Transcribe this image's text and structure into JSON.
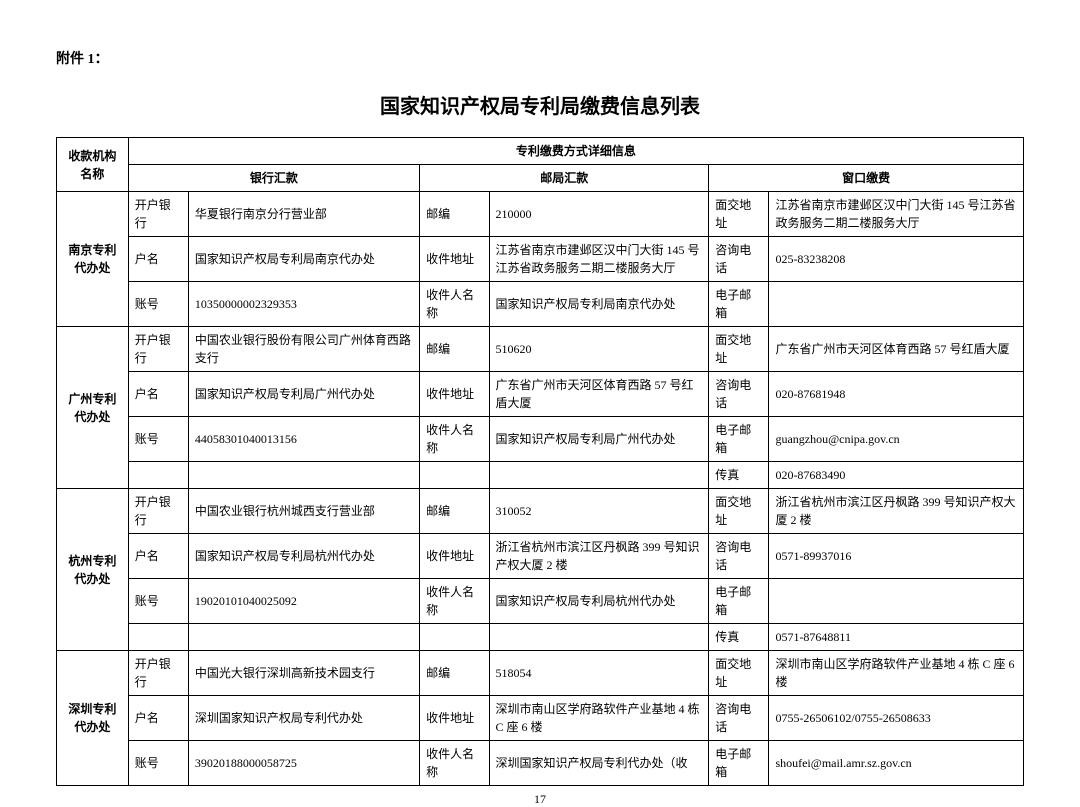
{
  "attachment_label": "附件 1：",
  "title": "国家知识产权局专利局缴费信息列表",
  "page_number": "17",
  "header": {
    "org_col": "收款机构名称",
    "detail_span": "专利缴费方式详细信息",
    "bank": "银行汇款",
    "post": "邮局汇款",
    "counter": "窗口缴费"
  },
  "labels": {
    "bank_bank": "开户银行",
    "bank_name": "户名",
    "bank_acct": "账号",
    "post_zip": "邮编",
    "post_addr": "收件地址",
    "post_recv": "收件人名称",
    "ctr_addr": "面交地址",
    "ctr_tel": "咨询电话",
    "ctr_email": "电子邮箱",
    "ctr_fax": "传真"
  },
  "rows": [
    {
      "org": "南京专利代办处",
      "lines": [
        {
          "b_label": "bank_bank",
          "b_val": "华夏银行南京分行营业部",
          "p_label": "post_zip",
          "p_val": "210000",
          "c_label": "ctr_addr",
          "c_val": "江苏省南京市建邺区汉中门大街 145 号江苏省政务服务二期二楼服务大厅"
        },
        {
          "b_label": "bank_name",
          "b_val": "国家知识产权局专利局南京代办处",
          "p_label": "post_addr",
          "p_val": "江苏省南京市建邺区汉中门大街 145 号江苏省政务服务二期二楼服务大厅",
          "c_label": "ctr_tel",
          "c_val": "025-83238208"
        },
        {
          "b_label": "bank_acct",
          "b_val": "10350000002329353",
          "p_label": "post_recv",
          "p_val": "国家知识产权局专利局南京代办处",
          "c_label": "ctr_email",
          "c_val": ""
        }
      ]
    },
    {
      "org": "广州专利代办处",
      "lines": [
        {
          "b_label": "bank_bank",
          "b_val": "中国农业银行股份有限公司广州体育西路支行",
          "p_label": "post_zip",
          "p_val": "510620",
          "c_label": "ctr_addr",
          "c_val": "广东省广州市天河区体育西路 57 号红盾大厦"
        },
        {
          "b_label": "bank_name",
          "b_val": "国家知识产权局专利局广州代办处",
          "p_label": "post_addr",
          "p_val": "广东省广州市天河区体育西路 57 号红盾大厦",
          "c_label": "ctr_tel",
          "c_val": "020-87681948"
        },
        {
          "b_label": "bank_acct",
          "b_val": "44058301040013156",
          "p_label": "post_recv",
          "p_val": "国家知识产权局专利局广州代办处",
          "c_label": "ctr_email",
          "c_val": "guangzhou@cnipa.gov.cn"
        },
        {
          "b_label": "",
          "b_val": "",
          "p_label": "",
          "p_val": "",
          "c_label": "ctr_fax",
          "c_val": "020-87683490"
        }
      ]
    },
    {
      "org": "杭州专利代办处",
      "lines": [
        {
          "b_label": "bank_bank",
          "b_val": "中国农业银行杭州城西支行营业部",
          "p_label": "post_zip",
          "p_val": "310052",
          "c_label": "ctr_addr",
          "c_val": "浙江省杭州市滨江区丹枫路 399 号知识产权大厦 2 楼"
        },
        {
          "b_label": "bank_name",
          "b_val": "国家知识产权局专利局杭州代办处",
          "p_label": "post_addr",
          "p_val": "浙江省杭州市滨江区丹枫路 399 号知识产权大厦 2 楼",
          "c_label": "ctr_tel",
          "c_val": "0571-89937016"
        },
        {
          "b_label": "bank_acct",
          "b_val": "19020101040025092",
          "p_label": "post_recv",
          "p_val": "国家知识产权局专利局杭州代办处",
          "c_label": "ctr_email",
          "c_val": ""
        },
        {
          "b_label": "",
          "b_val": "",
          "p_label": "",
          "p_val": "",
          "c_label": "ctr_fax",
          "c_val": "0571-87648811"
        }
      ]
    },
    {
      "org": "深圳专利代办处",
      "lines": [
        {
          "b_label": "bank_bank",
          "b_val": "中国光大银行深圳高新技术园支行",
          "p_label": "post_zip",
          "p_val": "518054",
          "c_label": "ctr_addr",
          "c_val": "深圳市南山区学府路软件产业基地 4 栋 C 座 6 楼"
        },
        {
          "b_label": "bank_name",
          "b_val": "深圳国家知识产权局专利代办处",
          "p_label": "post_addr",
          "p_val": "深圳市南山区学府路软件产业基地 4 栋 C 座 6 楼",
          "c_label": "ctr_tel",
          "c_val": "0755-26506102/0755-26508633"
        },
        {
          "b_label": "bank_acct",
          "b_val": "39020188000058725",
          "p_label": "post_recv",
          "p_val": "深圳国家知识产权局专利代办处（收",
          "c_label": "ctr_email",
          "c_val": "shoufei@mail.amr.sz.gov.cn"
        }
      ]
    }
  ]
}
